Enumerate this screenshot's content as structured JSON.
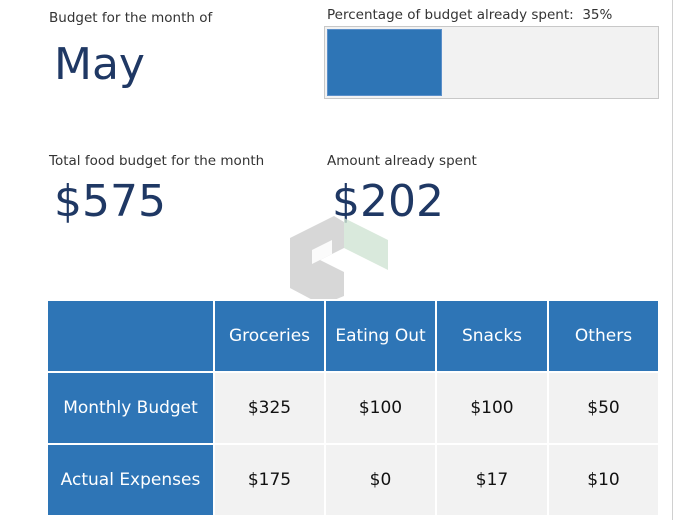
{
  "month": {
    "label": "Budget for the month of",
    "value": "May"
  },
  "progress": {
    "label": "Percentage of budget already spent:",
    "percent_text": "35%",
    "fraction": 0.35
  },
  "total": {
    "label": "Total food budget for the month",
    "value": "$575"
  },
  "spent": {
    "label": "Amount already spent",
    "value": "$202"
  },
  "table": {
    "columns": [
      "",
      "Groceries",
      "Eating Out",
      "Snacks",
      "Others"
    ],
    "rows": [
      {
        "label": "Monthly Budget",
        "values": [
          "$325",
          "$100",
          "$100",
          "$50"
        ]
      },
      {
        "label": "Actual Expenses",
        "values": [
          "$175",
          "$0",
          "$17",
          "$10"
        ]
      }
    ]
  },
  "colors": {
    "accent": "#2e75b6",
    "big_text": "#1f3864",
    "cell_bg": "#f2f2f2"
  },
  "watermark": {
    "icon": "logo-watermark-icon"
  }
}
